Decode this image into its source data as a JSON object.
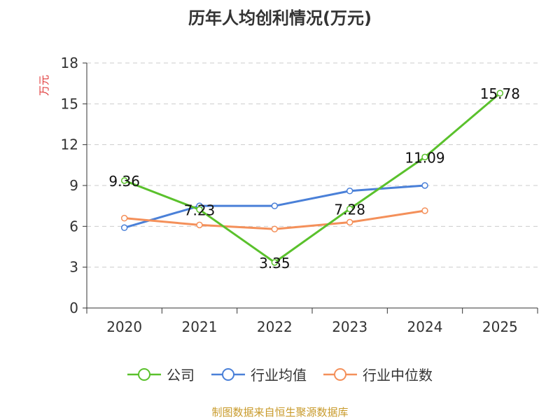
{
  "chart_data": {
    "type": "line",
    "title": "历年人均创利情况(万元)",
    "ylabel": "万元",
    "xlabel": "",
    "categories": [
      "2020",
      "2021",
      "2022",
      "2023",
      "2024",
      "2025"
    ],
    "ylim": [
      0,
      18
    ],
    "yticks": [
      0,
      3,
      6,
      9,
      12,
      15,
      18
    ],
    "grid": true,
    "legend_position": "bottom",
    "series": [
      {
        "name": "公司",
        "color": "#5ac12c",
        "values": [
          9.36,
          7.23,
          3.35,
          7.28,
          11.09,
          15.78
        ],
        "labels": [
          "9.36",
          "7.23",
          "3.35",
          "7.28",
          "11.09",
          "15.78"
        ]
      },
      {
        "name": "行业均值",
        "color": "#4a80d8",
        "values": [
          5.9,
          7.5,
          7.5,
          8.6,
          9.0,
          null
        ]
      },
      {
        "name": "行业中位数",
        "color": "#f4905a",
        "values": [
          6.6,
          6.1,
          5.8,
          6.3,
          7.15,
          null
        ]
      }
    ]
  },
  "footer": {
    "source": "制图数据来自恒生聚源数据库"
  }
}
